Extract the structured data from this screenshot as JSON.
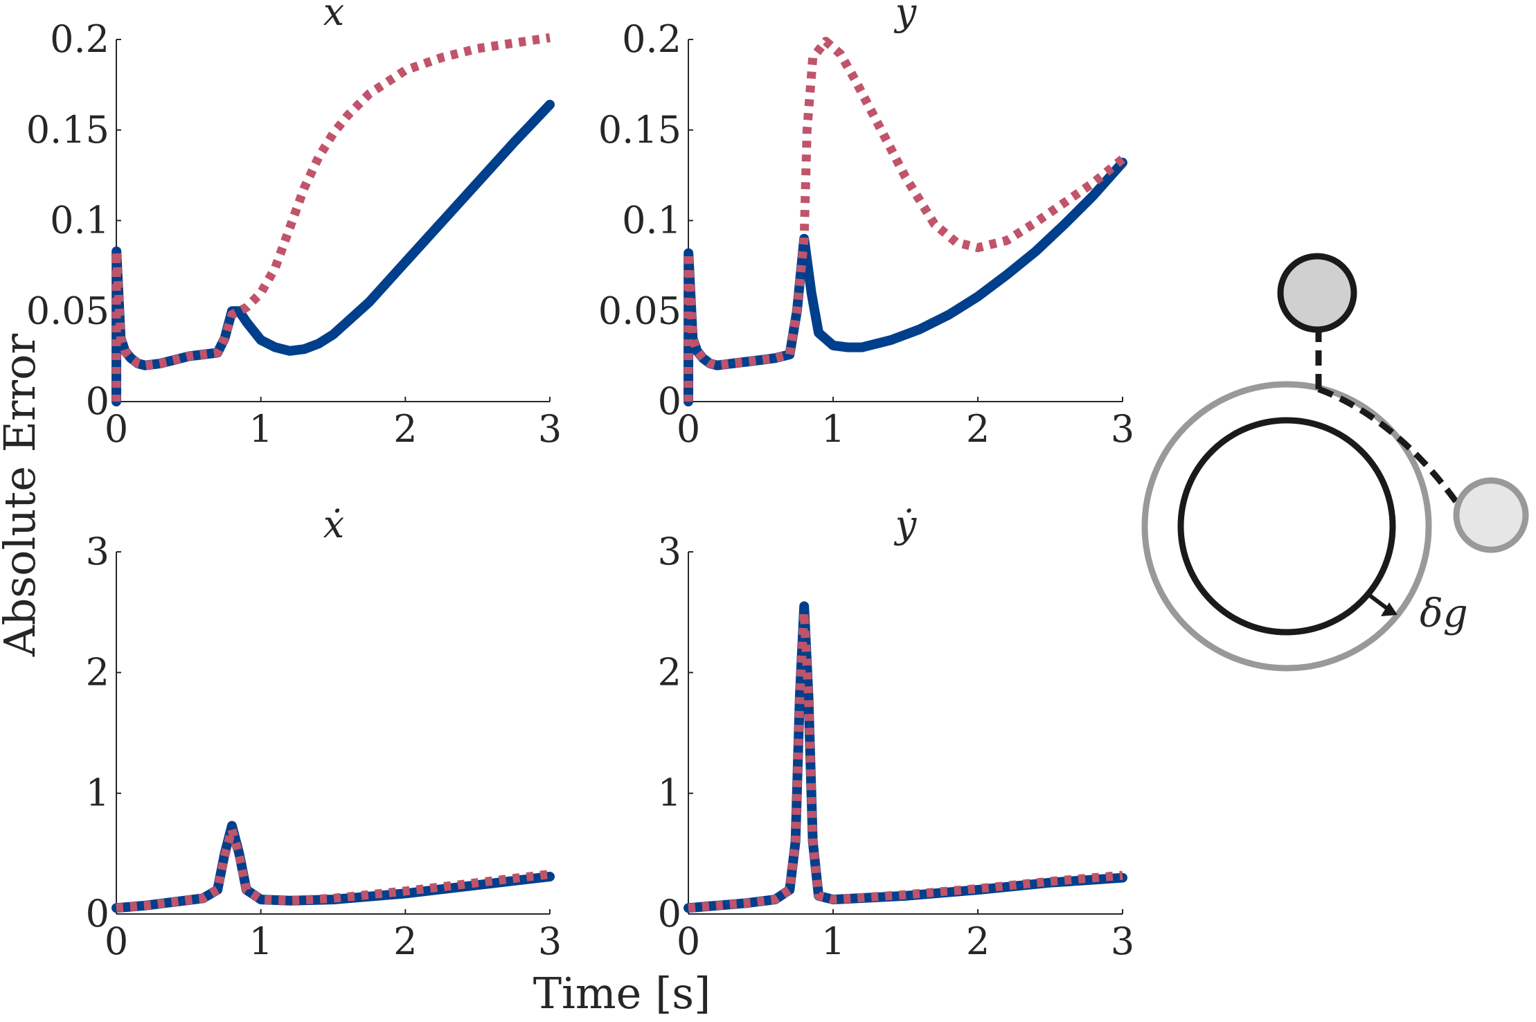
{
  "figure": {
    "ylabel": "Absolute Error",
    "xlabel": "Time [s]",
    "colors": {
      "solid": "#003f8c",
      "dotted": "#c0546a",
      "axis": "#262626"
    },
    "diagram": {
      "label": "δg",
      "outer_ring_color": "#999999",
      "inner_ring_color": "#1a1a1a",
      "node_top_fill": "#d0d0d0",
      "node_right_fill": "#e6e6e6"
    }
  },
  "chart_data": [
    {
      "type": "line",
      "title": "x",
      "xlim": [
        0,
        3
      ],
      "ylim": [
        0,
        0.2
      ],
      "xticks": [
        "0",
        "1",
        "2",
        "3"
      ],
      "yticks": [
        "0",
        "0.05",
        "0.1",
        "0.15",
        "0.2"
      ],
      "series": [
        {
          "style": "solid",
          "color": "#003f8c",
          "x": [
            0,
            0.001,
            0.03,
            0.06,
            0.1,
            0.15,
            0.2,
            0.3,
            0.4,
            0.5,
            0.6,
            0.7,
            0.75,
            0.8,
            0.85,
            0.9,
            1.0,
            1.1,
            1.2,
            1.3,
            1.4,
            1.5,
            1.75,
            2.0,
            2.25,
            2.5,
            2.75,
            3.0
          ],
          "y": [
            0,
            0.083,
            0.035,
            0.028,
            0.024,
            0.021,
            0.02,
            0.021,
            0.023,
            0.025,
            0.026,
            0.027,
            0.035,
            0.05,
            0.05,
            0.044,
            0.034,
            0.03,
            0.028,
            0.029,
            0.032,
            0.037,
            0.055,
            0.077,
            0.099,
            0.121,
            0.143,
            0.164
          ]
        },
        {
          "style": "dotted",
          "color": "#c0546a",
          "x": [
            0,
            0.001,
            0.03,
            0.06,
            0.1,
            0.15,
            0.2,
            0.3,
            0.4,
            0.5,
            0.6,
            0.7,
            0.75,
            0.8,
            0.85,
            0.9,
            1.0,
            1.1,
            1.2,
            1.3,
            1.4,
            1.5,
            1.6,
            1.75,
            2.0,
            2.25,
            2.5,
            2.75,
            3.0
          ],
          "y": [
            0,
            0.083,
            0.035,
            0.028,
            0.024,
            0.021,
            0.02,
            0.021,
            0.023,
            0.025,
            0.026,
            0.027,
            0.035,
            0.048,
            0.05,
            0.052,
            0.06,
            0.074,
            0.096,
            0.118,
            0.135,
            0.148,
            0.158,
            0.17,
            0.183,
            0.19,
            0.195,
            0.198,
            0.201
          ]
        }
      ]
    },
    {
      "type": "line",
      "title": "y",
      "xlim": [
        0,
        3
      ],
      "ylim": [
        0,
        0.2
      ],
      "xticks": [
        "0",
        "1",
        "2",
        "3"
      ],
      "yticks": [
        "0",
        "0.05",
        "0.1",
        "0.15",
        "0.2"
      ],
      "series": [
        {
          "style": "solid",
          "color": "#003f8c",
          "x": [
            0,
            0.001,
            0.03,
            0.06,
            0.1,
            0.15,
            0.2,
            0.3,
            0.4,
            0.5,
            0.6,
            0.7,
            0.75,
            0.8,
            0.85,
            0.9,
            1.0,
            1.1,
            1.2,
            1.4,
            1.6,
            1.8,
            2.0,
            2.2,
            2.4,
            2.6,
            2.8,
            3.0
          ],
          "y": [
            0,
            0.082,
            0.035,
            0.028,
            0.024,
            0.021,
            0.02,
            0.021,
            0.022,
            0.023,
            0.024,
            0.026,
            0.05,
            0.09,
            0.06,
            0.038,
            0.031,
            0.03,
            0.03,
            0.034,
            0.04,
            0.048,
            0.058,
            0.07,
            0.083,
            0.098,
            0.114,
            0.132
          ]
        },
        {
          "style": "dotted",
          "color": "#c0546a",
          "x": [
            0,
            0.001,
            0.03,
            0.06,
            0.1,
            0.15,
            0.2,
            0.3,
            0.4,
            0.5,
            0.6,
            0.7,
            0.75,
            0.8,
            0.82,
            0.86,
            0.95,
            1.05,
            1.15,
            1.3,
            1.5,
            1.7,
            1.85,
            2.0,
            2.2,
            2.4,
            2.6,
            2.8,
            3.0
          ],
          "y": [
            0,
            0.082,
            0.035,
            0.028,
            0.024,
            0.021,
            0.02,
            0.021,
            0.022,
            0.023,
            0.024,
            0.026,
            0.05,
            0.09,
            0.15,
            0.19,
            0.199,
            0.192,
            0.178,
            0.155,
            0.124,
            0.098,
            0.088,
            0.085,
            0.089,
            0.099,
            0.11,
            0.121,
            0.134
          ]
        }
      ]
    },
    {
      "type": "line",
      "title": "ẋ",
      "xlim": [
        0,
        3
      ],
      "ylim": [
        0,
        3
      ],
      "xticks": [
        "0",
        "1",
        "2",
        "3"
      ],
      "yticks": [
        "0",
        "1",
        "2",
        "3"
      ],
      "series": [
        {
          "style": "solid",
          "color": "#003f8c",
          "x": [
            0,
            0.2,
            0.4,
            0.6,
            0.7,
            0.75,
            0.8,
            0.85,
            0.9,
            1.0,
            1.2,
            1.5,
            2.0,
            2.5,
            3.0
          ],
          "y": [
            0.05,
            0.07,
            0.1,
            0.13,
            0.2,
            0.5,
            0.73,
            0.5,
            0.2,
            0.12,
            0.11,
            0.12,
            0.17,
            0.24,
            0.31
          ]
        },
        {
          "style": "dotted",
          "color": "#c0546a",
          "x": [
            0,
            0.2,
            0.4,
            0.6,
            0.7,
            0.75,
            0.8,
            0.85,
            0.9,
            1.0,
            1.2,
            1.5,
            2.0,
            2.5,
            3.0
          ],
          "y": [
            0.05,
            0.07,
            0.1,
            0.13,
            0.2,
            0.48,
            0.7,
            0.48,
            0.2,
            0.12,
            0.11,
            0.13,
            0.19,
            0.26,
            0.33
          ]
        }
      ]
    },
    {
      "type": "line",
      "title": "ẏ",
      "xlim": [
        0,
        3
      ],
      "ylim": [
        0,
        3
      ],
      "xticks": [
        "0",
        "1",
        "2",
        "3"
      ],
      "yticks": [
        "0",
        "1",
        "2",
        "3"
      ],
      "series": [
        {
          "style": "solid",
          "color": "#003f8c",
          "x": [
            0,
            0.2,
            0.4,
            0.6,
            0.7,
            0.74,
            0.77,
            0.8,
            0.83,
            0.86,
            0.9,
            1.0,
            1.5,
            2.0,
            2.5,
            3.0
          ],
          "y": [
            0.05,
            0.07,
            0.09,
            0.12,
            0.2,
            0.6,
            1.8,
            2.55,
            1.8,
            0.6,
            0.15,
            0.12,
            0.15,
            0.2,
            0.26,
            0.3
          ]
        },
        {
          "style": "dotted",
          "color": "#c0546a",
          "x": [
            0,
            0.2,
            0.4,
            0.6,
            0.7,
            0.74,
            0.77,
            0.8,
            0.83,
            0.86,
            0.9,
            1.0,
            1.5,
            2.0,
            2.5,
            3.0
          ],
          "y": [
            0.05,
            0.07,
            0.09,
            0.12,
            0.2,
            0.6,
            1.8,
            2.5,
            1.8,
            0.6,
            0.15,
            0.12,
            0.16,
            0.21,
            0.27,
            0.32
          ]
        }
      ]
    }
  ]
}
